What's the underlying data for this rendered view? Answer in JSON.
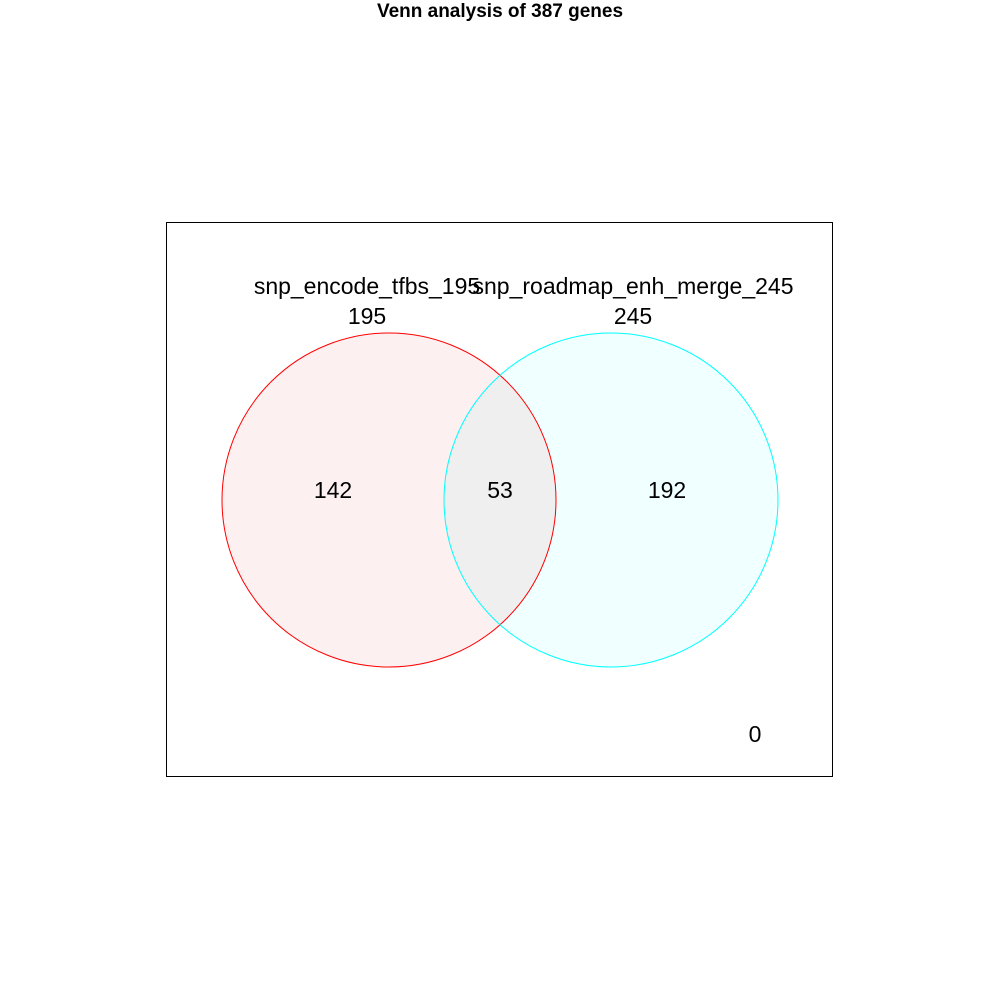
{
  "title": "Venn analysis of 387 genes",
  "colors": {
    "set_a_stroke": "#ff0000",
    "set_a_fill": "#fdf0f0",
    "set_b_stroke": "#00ffff",
    "set_b_fill": "#f0ffff",
    "overlap_fill": "#efefef",
    "frame": "#000000"
  },
  "sets": [
    {
      "name": "snp_encode_tfbs_195",
      "total": "195",
      "only": "142"
    },
    {
      "name": "snp_roadmap_enh_merge_245",
      "total": "245",
      "only": "192"
    }
  ],
  "overlap": "53",
  "outside": "0"
}
